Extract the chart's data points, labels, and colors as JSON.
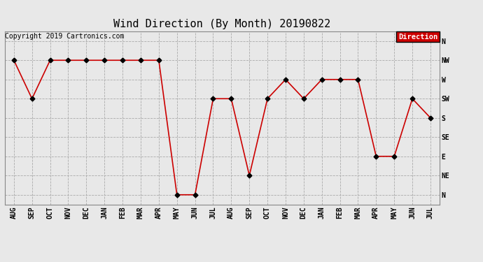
{
  "title": "Wind Direction (By Month) 20190822",
  "copyright": "Copyright 2019 Cartronics.com",
  "legend_label": "Direction",
  "x_labels": [
    "AUG",
    "SEP",
    "OCT",
    "NOV",
    "DEC",
    "JAN",
    "FEB",
    "MAR",
    "APR",
    "MAY",
    "JUN",
    "JUL",
    "AUG",
    "SEP",
    "OCT",
    "NOV",
    "DEC",
    "JAN",
    "FEB",
    "MAR",
    "APR",
    "MAY",
    "JUN",
    "JUL"
  ],
  "y_numeric": [
    7,
    5,
    7,
    7,
    7,
    7,
    7,
    7,
    7,
    0,
    0,
    5,
    5,
    1,
    5,
    6,
    5,
    6,
    6,
    6,
    2,
    2,
    5,
    4
  ],
  "line_color": "#cc0000",
  "marker_color": "#000000",
  "background_color": "#e8e8e8",
  "grid_color": "#aaaaaa",
  "title_fontsize": 11,
  "copyright_fontsize": 7,
  "tick_fontsize": 7,
  "legend_bg": "#cc0000",
  "legend_fg": "#ffffff",
  "fig_width": 6.9,
  "fig_height": 3.75,
  "dpi": 100
}
